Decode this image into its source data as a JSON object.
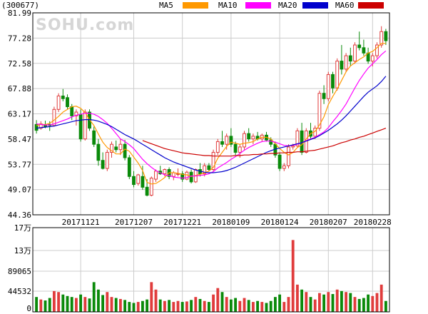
{
  "chart_data": {
    "type": "candlestick",
    "stock_code": "(300677)",
    "watermark": "SOHU.com",
    "legend": [
      {
        "name": "MA5",
        "color": "#ff9900"
      },
      {
        "name": "MA10",
        "color": "#ff00ff"
      },
      {
        "name": "MA20",
        "color": "#0000cc"
      },
      {
        "name": "MA60",
        "color": "#cc0000"
      }
    ],
    "price_axis": {
      "ticks": [
        "81.99",
        "77.28",
        "72.58",
        "67.88",
        "63.17",
        "58.47",
        "53.77",
        "49.07",
        "44.36"
      ],
      "min": 44.36,
      "max": 81.99
    },
    "volume_axis": {
      "ticks": [
        "17万",
        "13万",
        "89065",
        "44532",
        "0"
      ],
      "max": 170000
    },
    "date_ticks": [
      "20171121",
      "20171207",
      "20171221",
      "20180109",
      "20180124",
      "20180207",
      "20180228"
    ],
    "colors": {
      "up": "#e03c3c",
      "down": "#0a8a0a",
      "grid": "#cccccc",
      "axis": "#000000"
    },
    "candles": [
      [
        61.2,
        62.0,
        59.5,
        60.1,
        30000
      ],
      [
        60.5,
        61.8,
        60.2,
        61.3,
        25000
      ],
      [
        61.0,
        61.9,
        60.5,
        60.8,
        23000
      ],
      [
        61.2,
        61.8,
        60.0,
        61.0,
        28000
      ],
      [
        61.0,
        64.5,
        60.8,
        64.0,
        42000
      ],
      [
        64.0,
        67.0,
        63.5,
        66.5,
        40000
      ],
      [
        66.5,
        67.8,
        65.5,
        66.0,
        35000
      ],
      [
        66.2,
        66.8,
        64.0,
        64.5,
        32000
      ],
      [
        64.5,
        65.0,
        62.0,
        62.8,
        30000
      ],
      [
        62.8,
        64.0,
        61.0,
        63.5,
        28000
      ],
      [
        63.0,
        64.0,
        58.0,
        58.5,
        35000
      ],
      [
        58.5,
        64.0,
        58.2,
        63.5,
        30000
      ],
      [
        63.5,
        64.0,
        60.0,
        60.5,
        27000
      ],
      [
        60.0,
        60.8,
        57.0,
        57.5,
        60000
      ],
      [
        57.5,
        58.5,
        53.5,
        54.5,
        45000
      ],
      [
        54.5,
        56.0,
        52.8,
        53.0,
        34000
      ],
      [
        53.0,
        56.5,
        52.5,
        56.0,
        40000
      ],
      [
        56.0,
        58.0,
        55.0,
        57.5,
        30000
      ],
      [
        57.0,
        58.2,
        56.0,
        56.5,
        28000
      ],
      [
        56.5,
        58.5,
        55.5,
        57.5,
        26000
      ],
      [
        57.5,
        58.3,
        54.5,
        55.0,
        24000
      ],
      [
        55.0,
        55.5,
        51.0,
        51.5,
        20000
      ],
      [
        51.5,
        52.5,
        49.5,
        50.0,
        18000
      ],
      [
        50.2,
        52.0,
        49.8,
        51.8,
        20000
      ],
      [
        51.5,
        53.5,
        49.0,
        49.5,
        22000
      ],
      [
        49.5,
        51.0,
        47.8,
        48.0,
        25000
      ],
      [
        48.0,
        51.5,
        47.8,
        51.2,
        60000
      ],
      [
        51.0,
        52.8,
        50.5,
        52.5,
        45000
      ],
      [
        52.5,
        53.5,
        51.8,
        52.0,
        25000
      ],
      [
        52.0,
        53.0,
        51.5,
        52.8,
        22000
      ],
      [
        52.8,
        53.2,
        51.0,
        51.5,
        24000
      ],
      [
        51.5,
        52.5,
        50.8,
        52.2,
        20000
      ],
      [
        52.0,
        53.0,
        51.5,
        52.0,
        22000
      ],
      [
        52.0,
        52.5,
        50.5,
        51.0,
        20000
      ],
      [
        51.0,
        52.6,
        50.8,
        52.3,
        21000
      ],
      [
        52.3,
        52.8,
        50.2,
        50.5,
        24000
      ],
      [
        50.5,
        53.0,
        50.3,
        52.8,
        30000
      ],
      [
        52.8,
        54.0,
        51.5,
        52.0,
        26000
      ],
      [
        52.0,
        54.0,
        51.5,
        53.5,
        22000
      ],
      [
        53.5,
        54.0,
        52.5,
        52.8,
        20000
      ],
      [
        52.8,
        56.5,
        52.5,
        56.0,
        35000
      ],
      [
        56.0,
        58.5,
        55.5,
        58.0,
        48000
      ],
      [
        58.0,
        60.0,
        57.0,
        57.5,
        40000
      ],
      [
        57.5,
        59.5,
        56.5,
        59.0,
        30000
      ],
      [
        59.0,
        60.5,
        57.0,
        57.5,
        25000
      ],
      [
        57.5,
        58.0,
        55.5,
        56.0,
        28000
      ],
      [
        56.0,
        57.5,
        55.0,
        57.0,
        22000
      ],
      [
        57.0,
        60.0,
        56.5,
        59.5,
        28000
      ],
      [
        59.5,
        60.5,
        58.0,
        58.5,
        24000
      ],
      [
        58.5,
        59.5,
        57.5,
        59.0,
        20000
      ],
      [
        59.0,
        59.8,
        58.2,
        58.5,
        22000
      ],
      [
        58.5,
        59.5,
        58.0,
        59.2,
        20000
      ],
      [
        59.2,
        59.8,
        58.0,
        58.3,
        18000
      ],
      [
        58.3,
        58.8,
        57.0,
        57.5,
        22000
      ],
      [
        57.5,
        58.0,
        55.0,
        55.5,
        30000
      ],
      [
        55.5,
        56.0,
        52.5,
        53.0,
        35000
      ],
      [
        53.0,
        54.0,
        52.5,
        53.5,
        20000
      ],
      [
        53.5,
        57.5,
        53.0,
        57.0,
        30000
      ],
      [
        57.0,
        57.6,
        56.5,
        57.2,
        145000
      ],
      [
        57.2,
        60.5,
        57.0,
        60.0,
        55000
      ],
      [
        60.0,
        61.5,
        55.5,
        56.0,
        45000
      ],
      [
        56.0,
        60.5,
        55.8,
        60.0,
        40000
      ],
      [
        60.0,
        61.5,
        58.5,
        59.0,
        30000
      ],
      [
        59.0,
        61.0,
        58.5,
        60.5,
        25000
      ],
      [
        60.5,
        67.5,
        60.0,
        67.0,
        38000
      ],
      [
        67.0,
        68.5,
        65.0,
        66.0,
        35000
      ],
      [
        66.0,
        71.0,
        65.5,
        70.5,
        40000
      ],
      [
        70.5,
        71.0,
        67.0,
        68.0,
        36000
      ],
      [
        68.0,
        73.5,
        67.5,
        73.0,
        45000
      ],
      [
        73.0,
        76.0,
        70.5,
        71.5,
        42000
      ],
      [
        71.5,
        74.5,
        71.0,
        74.0,
        40000
      ],
      [
        74.0,
        75.5,
        72.0,
        73.0,
        38000
      ],
      [
        73.0,
        76.5,
        72.5,
        76.0,
        30000
      ],
      [
        76.0,
        78.5,
        75.0,
        75.5,
        26000
      ],
      [
        75.5,
        77.0,
        74.0,
        74.5,
        28000
      ],
      [
        74.5,
        75.5,
        72.5,
        73.0,
        35000
      ],
      [
        73.0,
        74.5,
        72.0,
        74.0,
        32000
      ],
      [
        74.0,
        76.5,
        73.5,
        76.0,
        38000
      ],
      [
        76.0,
        79.5,
        75.5,
        78.5,
        55000
      ],
      [
        78.5,
        79.0,
        76.0,
        76.8,
        22000
      ]
    ],
    "ma5": [
      61.0,
      61.2,
      61.2,
      61.4,
      62.0,
      62.7,
      63.5,
      64.0,
      64.5,
      64.6,
      64.2,
      63.4,
      62.1,
      61.0,
      59.4,
      57.9,
      56.9,
      56.3,
      55.7,
      55.7,
      56.6,
      56.2,
      55.1,
      54.0,
      52.6,
      50.4,
      50.1,
      50.2,
      50.7,
      51.3,
      52.2,
      52.2,
      52.1,
      51.9,
      51.8,
      51.5,
      51.7,
      51.9,
      52.2,
      52.5,
      53.2,
      54.9,
      56.0,
      57.1,
      57.9,
      57.7,
      57.5,
      57.7,
      57.8,
      58.0,
      58.5,
      58.8,
      58.8,
      58.5,
      57.6,
      56.7,
      56.0,
      55.5,
      56.0,
      56.9,
      57.4,
      58.5,
      59.5,
      59.9,
      61.1,
      62.6,
      64.9,
      66.4,
      67.8,
      69.4,
      71.0,
      72.1,
      72.7,
      73.3,
      73.8,
      74.5,
      74.8,
      75.5,
      76.3,
      76.3
    ],
    "ma10": [
      61.3,
      61.2,
      61.1,
      61.1,
      61.3,
      61.6,
      61.9,
      62.2,
      62.6,
      62.9,
      63.1,
      63.3,
      63.3,
      63.1,
      62.7,
      62.1,
      61.4,
      60.5,
      59.5,
      58.5,
      58.0,
      57.4,
      56.7,
      55.7,
      54.7,
      53.9,
      53.2,
      52.6,
      52.2,
      51.8,
      51.7,
      51.4,
      51.3,
      51.2,
      51.3,
      51.6,
      51.6,
      51.7,
      51.8,
      52.0,
      52.4,
      53.1,
      53.6,
      54.1,
      54.7,
      55.2,
      55.8,
      56.4,
      56.9,
      57.3,
      57.7,
      58.0,
      58.1,
      58.1,
      57.9,
      57.6,
      57.3,
      57.2,
      57.3,
      57.5,
      57.8,
      58.2,
      58.5,
      58.8,
      59.3,
      59.8,
      60.6,
      61.7,
      62.7,
      63.8,
      65.0,
      66.5,
      68.0,
      69.4,
      70.6,
      71.7,
      72.5,
      73.3,
      74.2,
      74.9
    ],
    "ma20": [
      60.5,
      60.6,
      60.7,
      60.8,
      60.9,
      61.1,
      61.3,
      61.5,
      61.7,
      61.9,
      62.0,
      62.1,
      62.1,
      62.0,
      61.8,
      61.5,
      61.2,
      60.8,
      60.3,
      59.8,
      59.3,
      58.9,
      58.5,
      58.0,
      57.5,
      57.0,
      56.5,
      56.0,
      55.5,
      55.0,
      54.6,
      54.2,
      53.9,
      53.6,
      53.3,
      53.0,
      52.7,
      52.5,
      52.3,
      52.2,
      52.2,
      52.3,
      52.4,
      52.6,
      52.9,
      53.2,
      53.6,
      54.0,
      54.4,
      54.8,
      55.2,
      55.6,
      56.0,
      56.3,
      56.6,
      56.8,
      57.0,
      57.2,
      57.4,
      57.6,
      57.8,
      58.1,
      58.4,
      58.7,
      59.1,
      59.6,
      60.1,
      60.7,
      61.3,
      62.0,
      62.8,
      63.7,
      64.6,
      65.5,
      66.4,
      67.2,
      67.8,
      68.4,
      69.2,
      70.2
    ],
    "ma60": [
      null,
      null,
      null,
      null,
      null,
      null,
      null,
      null,
      null,
      null,
      null,
      null,
      null,
      null,
      null,
      null,
      null,
      null,
      null,
      null,
      null,
      null,
      null,
      null,
      58.2,
      57.9,
      57.6,
      57.3,
      57.0,
      56.7,
      56.5,
      56.3,
      56.1,
      55.9,
      55.8,
      55.7,
      55.6,
      55.5,
      55.4,
      55.4,
      55.3,
      55.3,
      55.3,
      55.3,
      55.3,
      55.4,
      55.4,
      55.5,
      55.5,
      55.6,
      55.6,
      55.7,
      55.7,
      55.8,
      55.8,
      55.9,
      55.9,
      56.0,
      56.0,
      56.1,
      56.1,
      56.2,
      56.3,
      56.4,
      56.6,
      56.8,
      57.0,
      57.2,
      57.5,
      57.8,
      58.0,
      58.3,
      58.5,
      58.8,
      59.0,
      59.3,
      59.6,
      59.9,
      60.2,
      60.5
    ]
  }
}
